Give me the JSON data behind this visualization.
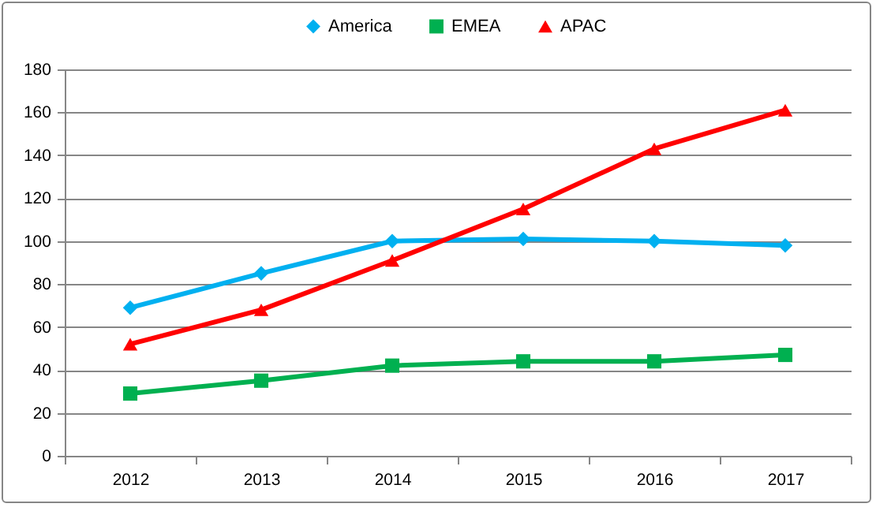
{
  "chart_data": {
    "type": "line",
    "categories": [
      "2012",
      "2013",
      "2014",
      "2015",
      "2016",
      "2017"
    ],
    "series": [
      {
        "name": "America",
        "color": "#00b0f0",
        "marker": "diamond",
        "values": [
          69,
          85,
          100,
          101,
          100,
          98
        ]
      },
      {
        "name": "EMEA",
        "color": "#00b050",
        "marker": "square",
        "values": [
          29,
          35,
          42,
          44,
          44,
          47
        ]
      },
      {
        "name": "APAC",
        "color": "#ff0000",
        "marker": "triangle",
        "values": [
          52,
          68,
          91,
          115,
          143,
          161
        ]
      }
    ],
    "ylim": [
      0,
      180
    ],
    "yticks": [
      0,
      20,
      40,
      60,
      80,
      100,
      120,
      140,
      160,
      180
    ],
    "grid": "y",
    "legend": "top",
    "line_style": "solid"
  }
}
